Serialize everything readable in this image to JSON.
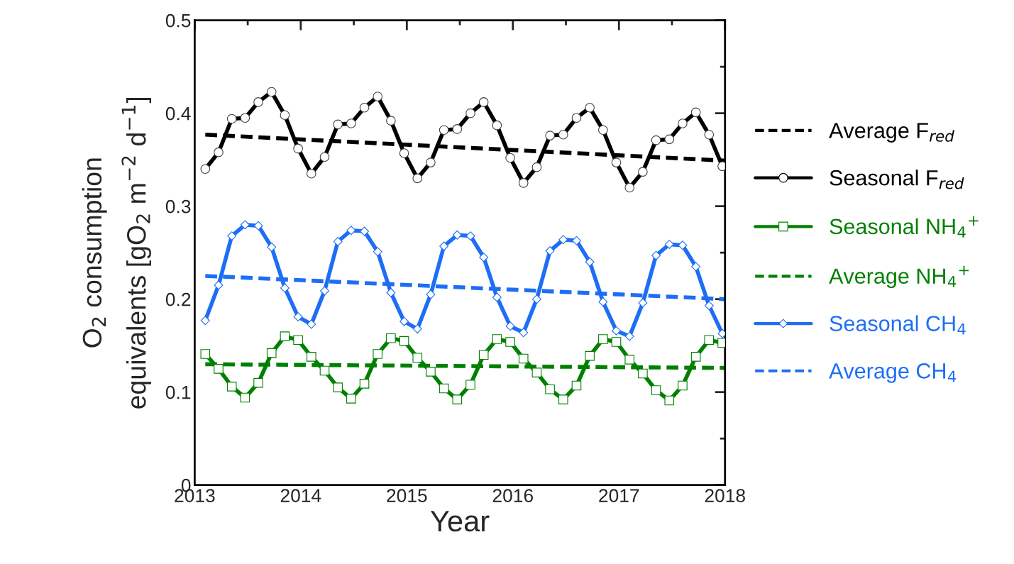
{
  "chart_data": {
    "type": "line",
    "xlabel": "Year",
    "ylabel": "O$_{2}$ consumption\nequivalents [gO$_{2}$ m$^{−2}$ d$^{−1}$]",
    "xlim": [
      2013,
      2018
    ],
    "xticks": [
      2013,
      2014,
      2015,
      2016,
      2017,
      2018
    ],
    "ylim": [
      0,
      0.5
    ],
    "yticks": [
      0,
      0.1,
      0.2,
      0.3,
      0.4,
      0.5
    ],
    "grid": false,
    "legend": "right",
    "series": [
      {
        "name": "Average F$_{red}$",
        "color": "#000000",
        "line_style": "dashed",
        "marker": "none",
        "x": [
          2013.1,
          2018
        ],
        "values": [
          0.377,
          0.349
        ]
      },
      {
        "name": "Seasonal F$_{red}$",
        "color": "#000000",
        "line_style": "solid",
        "marker": "circle",
        "x": [
          2013.1,
          2013.225,
          2013.35,
          2013.475,
          2013.6,
          2013.725,
          2013.85,
          2013.975,
          2014.1,
          2014.225,
          2014.35,
          2014.475,
          2014.6,
          2014.725,
          2014.85,
          2014.975,
          2015.1,
          2015.225,
          2015.35,
          2015.475,
          2015.6,
          2015.725,
          2015.85,
          2015.975,
          2016.1,
          2016.225,
          2016.35,
          2016.475,
          2016.6,
          2016.725,
          2016.85,
          2016.975,
          2017.1,
          2017.225,
          2017.35,
          2017.475,
          2017.6,
          2017.725,
          2017.85,
          2017.975
        ],
        "values": [
          0.34,
          0.358,
          0.394,
          0.395,
          0.412,
          0.423,
          0.398,
          0.362,
          0.335,
          0.353,
          0.388,
          0.389,
          0.406,
          0.418,
          0.392,
          0.357,
          0.33,
          0.347,
          0.382,
          0.383,
          0.4,
          0.412,
          0.387,
          0.352,
          0.325,
          0.342,
          0.376,
          0.377,
          0.395,
          0.406,
          0.382,
          0.347,
          0.32,
          0.337,
          0.371,
          0.372,
          0.389,
          0.401,
          0.377,
          0.343
        ]
      },
      {
        "name": "Seasonal NH$_{4}$$^{+}$",
        "color": "#008000",
        "line_style": "solid",
        "marker": "square",
        "x": [
          2013.1,
          2013.225,
          2013.35,
          2013.475,
          2013.6,
          2013.725,
          2013.85,
          2013.975,
          2014.1,
          2014.225,
          2014.35,
          2014.475,
          2014.6,
          2014.725,
          2014.85,
          2014.975,
          2015.1,
          2015.225,
          2015.35,
          2015.475,
          2015.6,
          2015.725,
          2015.85,
          2015.975,
          2016.1,
          2016.225,
          2016.35,
          2016.475,
          2016.6,
          2016.725,
          2016.85,
          2016.975,
          2017.1,
          2017.225,
          2017.35,
          2017.475,
          2017.6,
          2017.725,
          2017.85,
          2017.975
        ],
        "values": [
          0.141,
          0.125,
          0.106,
          0.094,
          0.11,
          0.142,
          0.16,
          0.156,
          0.138,
          0.123,
          0.105,
          0.093,
          0.109,
          0.141,
          0.158,
          0.155,
          0.137,
          0.122,
          0.104,
          0.092,
          0.108,
          0.14,
          0.157,
          0.154,
          0.136,
          0.121,
          0.103,
          0.092,
          0.107,
          0.139,
          0.157,
          0.154,
          0.135,
          0.12,
          0.102,
          0.091,
          0.107,
          0.138,
          0.156,
          0.153
        ]
      },
      {
        "name": "Average NH$_{4}$$^{+}$",
        "color": "#008000",
        "line_style": "dashed",
        "marker": "none",
        "x": [
          2013.1,
          2018
        ],
        "values": [
          0.13,
          0.126
        ]
      },
      {
        "name": "Seasonal CH$_{4}$",
        "color": "#1e6ef5",
        "line_style": "solid",
        "marker": "diamond",
        "x": [
          2013.1,
          2013.225,
          2013.35,
          2013.475,
          2013.6,
          2013.725,
          2013.85,
          2013.975,
          2014.1,
          2014.225,
          2014.35,
          2014.475,
          2014.6,
          2014.725,
          2014.85,
          2014.975,
          2015.1,
          2015.225,
          2015.35,
          2015.475,
          2015.6,
          2015.725,
          2015.85,
          2015.975,
          2016.1,
          2016.225,
          2016.35,
          2016.475,
          2016.6,
          2016.725,
          2016.85,
          2016.975,
          2017.1,
          2017.225,
          2017.35,
          2017.475,
          2017.6,
          2017.725,
          2017.85,
          2017.975
        ],
        "values": [
          0.177,
          0.215,
          0.268,
          0.28,
          0.279,
          0.256,
          0.212,
          0.181,
          0.173,
          0.209,
          0.262,
          0.274,
          0.273,
          0.251,
          0.207,
          0.176,
          0.168,
          0.205,
          0.257,
          0.269,
          0.268,
          0.245,
          0.202,
          0.171,
          0.164,
          0.2,
          0.252,
          0.264,
          0.263,
          0.24,
          0.197,
          0.166,
          0.16,
          0.196,
          0.247,
          0.259,
          0.258,
          0.235,
          0.193,
          0.163
        ]
      },
      {
        "name": "Average CH$_{4}$",
        "color": "#1e6ef5",
        "line_style": "dashed",
        "marker": "none",
        "x": [
          2013.1,
          2018
        ],
        "values": [
          0.225,
          0.2
        ]
      }
    ]
  }
}
